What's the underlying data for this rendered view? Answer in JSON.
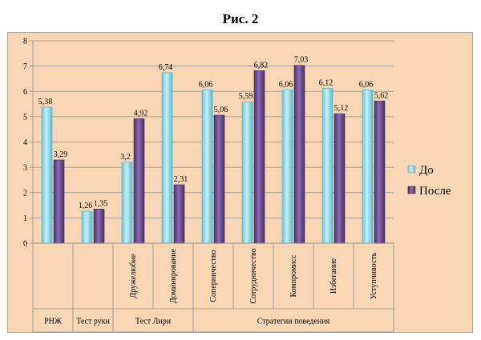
{
  "figure_title": "Рис. 2",
  "chart_data": {
    "type": "bar",
    "title": "Рис. 2",
    "categories": [
      "РНЖ",
      "Тест руки",
      "Дружелюбие",
      "Доминирование",
      "Соперничество",
      "Сотрудничество",
      "Компромисс",
      "Избегание",
      "Уступчивость"
    ],
    "groups": [
      {
        "label": "РНЖ",
        "from": 0,
        "to": 0
      },
      {
        "label": "Тест руки",
        "from": 1,
        "to": 1
      },
      {
        "label": "Тест Лири",
        "from": 2,
        "to": 3
      },
      {
        "label": "Стратегии поведения",
        "from": 4,
        "to": 8
      }
    ],
    "series": [
      {
        "name": "До",
        "color": "#8fd3e0",
        "values": [
          5.38,
          1.26,
          3.2,
          6.74,
          6.06,
          5.59,
          6.06,
          6.12,
          6.06
        ],
        "labels": [
          "5,38",
          "1,26",
          "3,2",
          "6,74",
          "6,06",
          "5,59",
          "6,06",
          "6,12",
          "6,06"
        ]
      },
      {
        "name": "После",
        "color": "#6b4b91",
        "values": [
          3.29,
          1.35,
          4.92,
          2.31,
          5.06,
          6.82,
          7.03,
          5.12,
          5.62
        ],
        "labels": [
          "3,29",
          "1,35",
          "4,92",
          "2,31",
          "5,06",
          "6,82",
          "7,03",
          "5,12",
          "5,62"
        ]
      }
    ],
    "ylim": [
      0,
      8
    ],
    "yticks": [
      "0",
      "1",
      "2",
      "3",
      "4",
      "5",
      "6",
      "7",
      "8"
    ],
    "grid": true,
    "legend": "right"
  }
}
